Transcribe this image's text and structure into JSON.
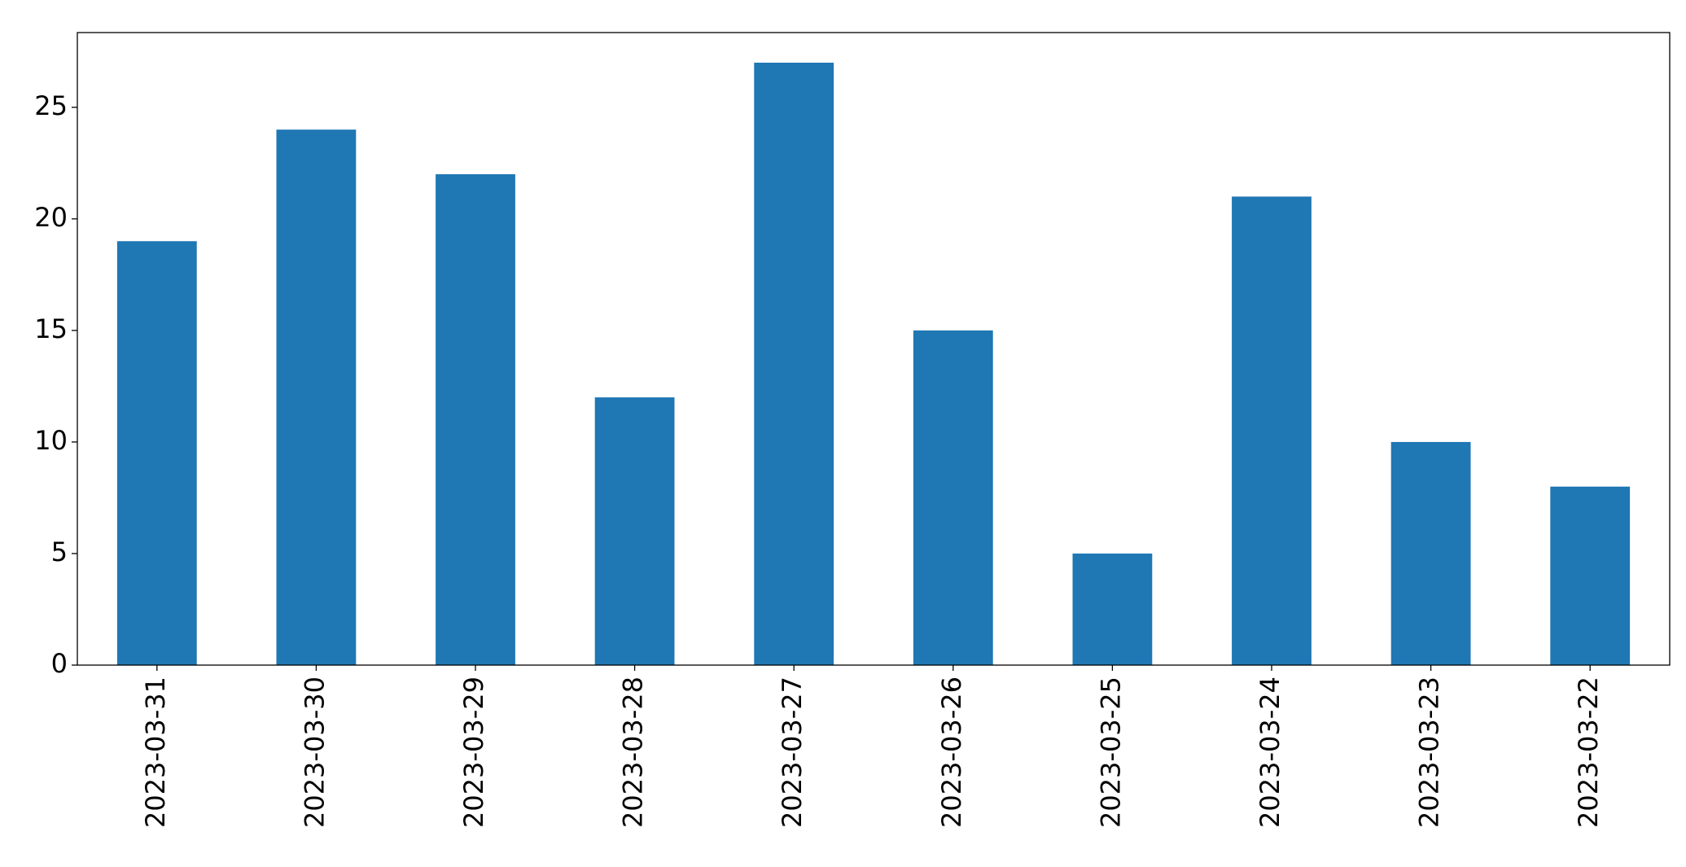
{
  "chart_data": {
    "type": "bar",
    "categories": [
      "2023-03-31",
      "2023-03-30",
      "2023-03-29",
      "2023-03-28",
      "2023-03-27",
      "2023-03-26",
      "2023-03-25",
      "2023-03-24",
      "2023-03-23",
      "2023-03-22"
    ],
    "values": [
      19,
      24,
      22,
      12,
      27,
      15,
      5,
      21,
      10,
      8
    ],
    "color": "#1f77b4",
    "ylim": [
      0,
      28.35
    ],
    "yticks": [
      0,
      5,
      10,
      15,
      20,
      25
    ]
  }
}
